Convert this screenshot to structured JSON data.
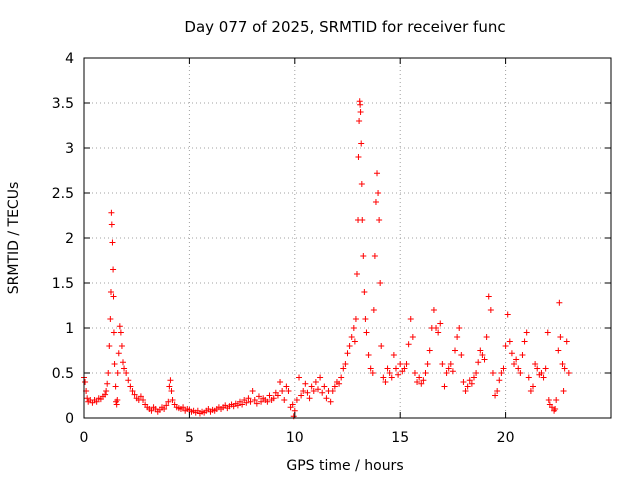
{
  "chart_data": {
    "type": "scatter",
    "title": "Day 077 of 2025, SRMTID for receiver func",
    "xlabel": "GPS time / hours",
    "ylabel": "SRMTID / TECUs",
    "xlim": [
      0,
      25
    ],
    "ylim": [
      0,
      4
    ],
    "xticks": [
      0,
      5,
      10,
      15,
      20
    ],
    "yticks": [
      0,
      0.5,
      1,
      1.5,
      2,
      2.5,
      3,
      3.5,
      4
    ],
    "xtick_labels": [
      "0",
      "5",
      "10",
      "15",
      "20"
    ],
    "ytick_labels": [
      "0",
      "0.5",
      "1",
      "1.5",
      "2",
      "2.5",
      "3",
      "3.5",
      "4"
    ],
    "grid": true,
    "marker": "+",
    "marker_color": "#ff0000",
    "series": [
      {
        "name": "SRMTID",
        "points": [
          [
            0.0,
            0.45
          ],
          [
            0.05,
            0.4
          ],
          [
            0.1,
            0.3
          ],
          [
            0.15,
            0.22
          ],
          [
            0.2,
            0.18
          ],
          [
            0.3,
            0.2
          ],
          [
            0.4,
            0.17
          ],
          [
            0.5,
            0.2
          ],
          [
            0.6,
            0.18
          ],
          [
            0.7,
            0.22
          ],
          [
            0.8,
            0.21
          ],
          [
            0.9,
            0.24
          ],
          [
            1.0,
            0.26
          ],
          [
            1.05,
            0.3
          ],
          [
            1.1,
            0.38
          ],
          [
            1.15,
            0.5
          ],
          [
            1.2,
            0.8
          ],
          [
            1.25,
            1.1
          ],
          [
            1.28,
            1.4
          ],
          [
            1.3,
            2.28
          ],
          [
            1.32,
            2.15
          ],
          [
            1.35,
            1.95
          ],
          [
            1.38,
            1.65
          ],
          [
            1.4,
            1.35
          ],
          [
            1.42,
            0.95
          ],
          [
            1.45,
            0.6
          ],
          [
            1.5,
            0.35
          ],
          [
            1.52,
            0.18
          ],
          [
            1.55,
            0.15
          ],
          [
            1.58,
            0.2
          ],
          [
            1.6,
            0.5
          ],
          [
            1.65,
            0.72
          ],
          [
            1.7,
            1.02
          ],
          [
            1.75,
            0.95
          ],
          [
            1.8,
            0.8
          ],
          [
            1.85,
            0.62
          ],
          [
            1.9,
            0.55
          ],
          [
            2.0,
            0.5
          ],
          [
            2.1,
            0.42
          ],
          [
            2.2,
            0.35
          ],
          [
            2.3,
            0.3
          ],
          [
            2.4,
            0.26
          ],
          [
            2.5,
            0.22
          ],
          [
            2.6,
            0.2
          ],
          [
            2.7,
            0.24
          ],
          [
            2.8,
            0.2
          ],
          [
            2.9,
            0.15
          ],
          [
            3.0,
            0.12
          ],
          [
            3.1,
            0.1
          ],
          [
            3.2,
            0.08
          ],
          [
            3.3,
            0.12
          ],
          [
            3.4,
            0.1
          ],
          [
            3.5,
            0.07
          ],
          [
            3.6,
            0.09
          ],
          [
            3.7,
            0.12
          ],
          [
            3.8,
            0.1
          ],
          [
            3.9,
            0.14
          ],
          [
            4.0,
            0.18
          ],
          [
            4.05,
            0.35
          ],
          [
            4.1,
            0.42
          ],
          [
            4.15,
            0.3
          ],
          [
            4.2,
            0.2
          ],
          [
            4.3,
            0.15
          ],
          [
            4.4,
            0.12
          ],
          [
            4.5,
            0.11
          ],
          [
            4.6,
            0.1
          ],
          [
            4.7,
            0.12
          ],
          [
            4.8,
            0.08
          ],
          [
            4.9,
            0.1
          ],
          [
            5.0,
            0.09
          ],
          [
            5.1,
            0.07
          ],
          [
            5.2,
            0.08
          ],
          [
            5.3,
            0.06
          ],
          [
            5.4,
            0.08
          ],
          [
            5.5,
            0.05
          ],
          [
            5.6,
            0.07
          ],
          [
            5.7,
            0.06
          ],
          [
            5.8,
            0.08
          ],
          [
            5.9,
            0.1
          ],
          [
            6.0,
            0.07
          ],
          [
            6.1,
            0.09
          ],
          [
            6.2,
            0.08
          ],
          [
            6.3,
            0.1
          ],
          [
            6.4,
            0.12
          ],
          [
            6.5,
            0.1
          ],
          [
            6.6,
            0.12
          ],
          [
            6.7,
            0.14
          ],
          [
            6.8,
            0.11
          ],
          [
            6.9,
            0.13
          ],
          [
            7.0,
            0.15
          ],
          [
            7.1,
            0.13
          ],
          [
            7.2,
            0.16
          ],
          [
            7.3,
            0.14
          ],
          [
            7.4,
            0.18
          ],
          [
            7.5,
            0.15
          ],
          [
            7.6,
            0.2
          ],
          [
            7.7,
            0.17
          ],
          [
            7.8,
            0.22
          ],
          [
            7.9,
            0.18
          ],
          [
            8.0,
            0.3
          ],
          [
            8.1,
            0.2
          ],
          [
            8.2,
            0.16
          ],
          [
            8.3,
            0.24
          ],
          [
            8.4,
            0.18
          ],
          [
            8.5,
            0.22
          ],
          [
            8.6,
            0.2
          ],
          [
            8.7,
            0.18
          ],
          [
            8.8,
            0.25
          ],
          [
            8.9,
            0.2
          ],
          [
            9.0,
            0.22
          ],
          [
            9.1,
            0.28
          ],
          [
            9.2,
            0.25
          ],
          [
            9.3,
            0.4
          ],
          [
            9.4,
            0.3
          ],
          [
            9.5,
            0.2
          ],
          [
            9.6,
            0.35
          ],
          [
            9.7,
            0.3
          ],
          [
            9.8,
            0.12
          ],
          [
            9.9,
            0.15
          ],
          [
            9.95,
            0.02
          ],
          [
            10.0,
            0.08
          ],
          [
            10.1,
            0.2
          ],
          [
            10.2,
            0.45
          ],
          [
            10.3,
            0.25
          ],
          [
            10.4,
            0.3
          ],
          [
            10.5,
            0.38
          ],
          [
            10.6,
            0.28
          ],
          [
            10.7,
            0.22
          ],
          [
            10.8,
            0.35
          ],
          [
            10.9,
            0.3
          ],
          [
            11.0,
            0.4
          ],
          [
            11.1,
            0.32
          ],
          [
            11.2,
            0.45
          ],
          [
            11.3,
            0.28
          ],
          [
            11.4,
            0.35
          ],
          [
            11.5,
            0.22
          ],
          [
            11.6,
            0.3
          ],
          [
            11.7,
            0.18
          ],
          [
            11.8,
            0.3
          ],
          [
            11.9,
            0.35
          ],
          [
            12.0,
            0.4
          ],
          [
            12.1,
            0.38
          ],
          [
            12.2,
            0.45
          ],
          [
            12.3,
            0.55
          ],
          [
            12.4,
            0.6
          ],
          [
            12.5,
            0.72
          ],
          [
            12.6,
            0.8
          ],
          [
            12.7,
            0.9
          ],
          [
            12.8,
            1.0
          ],
          [
            12.85,
            0.85
          ],
          [
            12.9,
            1.1
          ],
          [
            12.95,
            1.6
          ],
          [
            13.0,
            2.2
          ],
          [
            13.02,
            2.9
          ],
          [
            13.05,
            3.3
          ],
          [
            13.08,
            3.52
          ],
          [
            13.1,
            3.48
          ],
          [
            13.12,
            3.4
          ],
          [
            13.15,
            3.05
          ],
          [
            13.18,
            2.6
          ],
          [
            13.2,
            2.2
          ],
          [
            13.25,
            1.8
          ],
          [
            13.3,
            1.4
          ],
          [
            13.35,
            1.1
          ],
          [
            13.4,
            0.95
          ],
          [
            13.5,
            0.7
          ],
          [
            13.6,
            0.55
          ],
          [
            13.7,
            0.5
          ],
          [
            13.75,
            1.2
          ],
          [
            13.8,
            1.8
          ],
          [
            13.85,
            2.4
          ],
          [
            13.9,
            2.72
          ],
          [
            13.95,
            2.5
          ],
          [
            14.0,
            2.2
          ],
          [
            14.05,
            1.5
          ],
          [
            14.1,
            0.8
          ],
          [
            14.2,
            0.45
          ],
          [
            14.3,
            0.4
          ],
          [
            14.4,
            0.55
          ],
          [
            14.5,
            0.5
          ],
          [
            14.6,
            0.45
          ],
          [
            14.7,
            0.7
          ],
          [
            14.8,
            0.55
          ],
          [
            14.9,
            0.48
          ],
          [
            15.0,
            0.6
          ],
          [
            15.1,
            0.52
          ],
          [
            15.2,
            0.55
          ],
          [
            15.3,
            0.6
          ],
          [
            15.4,
            0.82
          ],
          [
            15.5,
            1.1
          ],
          [
            15.6,
            0.9
          ],
          [
            15.7,
            0.5
          ],
          [
            15.8,
            0.4
          ],
          [
            15.9,
            0.45
          ],
          [
            16.0,
            0.38
          ],
          [
            16.1,
            0.42
          ],
          [
            16.2,
            0.5
          ],
          [
            16.3,
            0.6
          ],
          [
            16.4,
            0.75
          ],
          [
            16.5,
            1.0
          ],
          [
            16.6,
            1.2
          ],
          [
            16.7,
            1.0
          ],
          [
            16.8,
            0.95
          ],
          [
            16.9,
            1.05
          ],
          [
            17.0,
            0.6
          ],
          [
            17.1,
            0.35
          ],
          [
            17.2,
            0.5
          ],
          [
            17.3,
            0.55
          ],
          [
            17.4,
            0.6
          ],
          [
            17.5,
            0.52
          ],
          [
            17.6,
            0.75
          ],
          [
            17.7,
            0.9
          ],
          [
            17.8,
            1.0
          ],
          [
            17.9,
            0.7
          ],
          [
            18.0,
            0.4
          ],
          [
            18.1,
            0.3
          ],
          [
            18.2,
            0.35
          ],
          [
            18.3,
            0.42
          ],
          [
            18.4,
            0.38
          ],
          [
            18.5,
            0.45
          ],
          [
            18.6,
            0.5
          ],
          [
            18.7,
            0.62
          ],
          [
            18.8,
            0.75
          ],
          [
            18.9,
            0.7
          ],
          [
            19.0,
            0.65
          ],
          [
            19.1,
            0.9
          ],
          [
            19.2,
            1.35
          ],
          [
            19.3,
            1.2
          ],
          [
            19.4,
            0.5
          ],
          [
            19.5,
            0.25
          ],
          [
            19.6,
            0.3
          ],
          [
            19.7,
            0.42
          ],
          [
            19.8,
            0.5
          ],
          [
            19.9,
            0.55
          ],
          [
            20.0,
            0.8
          ],
          [
            20.1,
            1.15
          ],
          [
            20.2,
            0.85
          ],
          [
            20.3,
            0.72
          ],
          [
            20.4,
            0.6
          ],
          [
            20.5,
            0.65
          ],
          [
            20.6,
            0.55
          ],
          [
            20.7,
            0.5
          ],
          [
            20.8,
            0.7
          ],
          [
            20.9,
            0.85
          ],
          [
            21.0,
            0.95
          ],
          [
            21.1,
            0.45
          ],
          [
            21.2,
            0.3
          ],
          [
            21.3,
            0.35
          ],
          [
            21.4,
            0.6
          ],
          [
            21.5,
            0.55
          ],
          [
            21.6,
            0.48
          ],
          [
            21.7,
            0.5
          ],
          [
            21.8,
            0.45
          ],
          [
            21.9,
            0.55
          ],
          [
            22.0,
            0.95
          ],
          [
            22.05,
            0.2
          ],
          [
            22.1,
            0.15
          ],
          [
            22.2,
            0.12
          ],
          [
            22.3,
            0.08
          ],
          [
            22.35,
            0.1
          ],
          [
            22.4,
            0.2
          ],
          [
            22.5,
            0.75
          ],
          [
            22.55,
            1.28
          ],
          [
            22.6,
            0.9
          ],
          [
            22.7,
            0.6
          ],
          [
            22.75,
            0.3
          ],
          [
            22.8,
            0.55
          ],
          [
            22.9,
            0.85
          ],
          [
            23.0,
            0.5
          ]
        ]
      }
    ]
  }
}
